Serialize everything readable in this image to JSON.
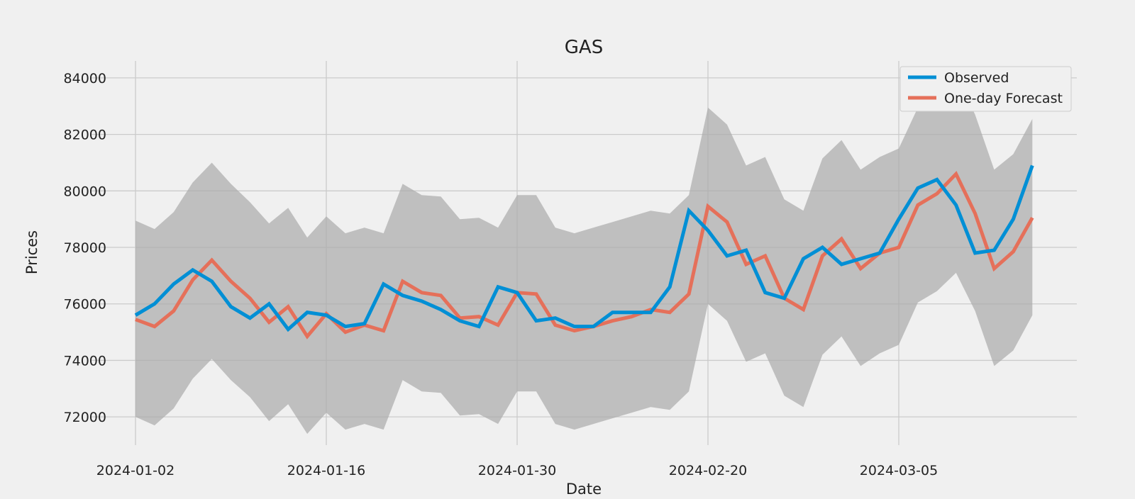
{
  "chart_data": {
    "type": "line",
    "title": "GAS",
    "xlabel": "Date",
    "ylabel": "Prices",
    "ylim": [
      71000,
      84600
    ],
    "y_ticks": [
      72000,
      74000,
      76000,
      78000,
      80000,
      82000,
      84000
    ],
    "x_tick_labels": [
      "2024-01-02",
      "2024-01-16",
      "2024-01-30",
      "2024-02-20",
      "2024-03-05"
    ],
    "x_tick_index": [
      0,
      10,
      20,
      30,
      40
    ],
    "grid": true,
    "legend_position": "top-right",
    "colors": {
      "observed": "#008fd5",
      "forecast": "#e5705a",
      "band": "#a9a9a9",
      "background": "#f0f0f0",
      "grid": "#cbcbcb"
    },
    "series": [
      {
        "name": "Observed",
        "values": [
          75600,
          76000,
          76700,
          77200,
          76800,
          75900,
          75500,
          76000,
          75100,
          75700,
          75600,
          75200,
          75300,
          76700,
          76300,
          76100,
          75800,
          75400,
          75200,
          76600,
          76400,
          75400,
          75500,
          75200,
          75200,
          75700,
          75700,
          75700,
          76600,
          79300,
          78600,
          77700,
          77900,
          76400,
          76200,
          77600,
          78000,
          77400,
          77600,
          77800,
          79000,
          80100,
          80400,
          79500,
          77800,
          77900,
          79000,
          80900
        ]
      },
      {
        "name": "One-day Forecast",
        "values": [
          75450,
          75200,
          75750,
          76850,
          77550,
          76800,
          76200,
          75350,
          75900,
          74850,
          75650,
          75000,
          75250,
          75050,
          76800,
          76400,
          76300,
          75500,
          75550,
          75250,
          76400,
          76350,
          75250,
          75050,
          75200,
          75400,
          75550,
          75800,
          75700,
          76350,
          79450,
          78900,
          77400,
          77700,
          76200,
          75800,
          77700,
          78300,
          77250,
          77800,
          78000,
          79500,
          79900,
          80600,
          79200,
          77250,
          77850,
          79050
        ]
      }
    ],
    "band_upper": [
      78950,
      78650,
      79250,
      80300,
      81000,
      80250,
      79600,
      78850,
      79400,
      78350,
      79100,
      78500,
      78700,
      78500,
      80250,
      79850,
      79800,
      79000,
      79050,
      78700,
      79850,
      79850,
      78700,
      78500,
      78700,
      78900,
      79100,
      79300,
      79200,
      79850,
      82950,
      82350,
      80900,
      81200,
      79700,
      79300,
      81150,
      81800,
      80750,
      81200,
      81500,
      82950,
      83400,
      84100,
      82700,
      80750,
      81300,
      82550
    ],
    "band_lower": [
      72000,
      71700,
      72300,
      73350,
      74050,
      73300,
      72700,
      71850,
      72450,
      71400,
      72150,
      71550,
      71750,
      71550,
      73300,
      72900,
      72850,
      72050,
      72100,
      71750,
      72900,
      72900,
      71750,
      71550,
      71750,
      71950,
      72150,
      72350,
      72250,
      72900,
      76000,
      75400,
      73950,
      74250,
      72750,
      72350,
      74200,
      74850,
      73800,
      74250,
      74550,
      76050,
      76450,
      77100,
      75750,
      73800,
      74350,
      75600
    ]
  }
}
